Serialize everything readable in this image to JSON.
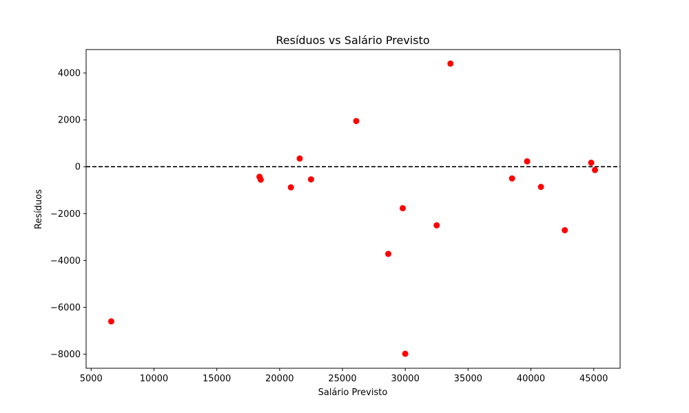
{
  "chart_data": {
    "type": "scatter",
    "title": "Resíduos vs Salário Previsto",
    "xlabel": "Salário Previsto",
    "ylabel": "Resíduos",
    "xlim": [
      4600,
      47100
    ],
    "ylim": [
      -8600,
      5000
    ],
    "xticks": [
      5000,
      10000,
      15000,
      20000,
      25000,
      30000,
      35000,
      40000,
      45000
    ],
    "xtick_labels": [
      "5000",
      "10000",
      "15000",
      "20000",
      "25000",
      "30000",
      "35000",
      "40000",
      "45000"
    ],
    "yticks": [
      -8000,
      -6000,
      -4000,
      -2000,
      0,
      2000,
      4000
    ],
    "ytick_labels": [
      "−8000",
      "−6000",
      "−4000",
      "−2000",
      "0",
      "2000",
      "4000"
    ],
    "reference_line": {
      "y": 0,
      "style": "dashed",
      "color": "#000000"
    },
    "grid": false,
    "marker_color": "#ff0000",
    "points": [
      {
        "x": 6600,
        "y": -6600
      },
      {
        "x": 18400,
        "y": -430
      },
      {
        "x": 18500,
        "y": -550
      },
      {
        "x": 20900,
        "y": -880
      },
      {
        "x": 21600,
        "y": 350
      },
      {
        "x": 22500,
        "y": -540
      },
      {
        "x": 26100,
        "y": 1950
      },
      {
        "x": 28650,
        "y": -3720
      },
      {
        "x": 29800,
        "y": -1770
      },
      {
        "x": 30000,
        "y": -7980
      },
      {
        "x": 32500,
        "y": -2500
      },
      {
        "x": 33600,
        "y": 4400
      },
      {
        "x": 38500,
        "y": -500
      },
      {
        "x": 39700,
        "y": 230
      },
      {
        "x": 40800,
        "y": -860
      },
      {
        "x": 42700,
        "y": -2710
      },
      {
        "x": 44800,
        "y": 170
      },
      {
        "x": 45100,
        "y": -140
      }
    ]
  }
}
